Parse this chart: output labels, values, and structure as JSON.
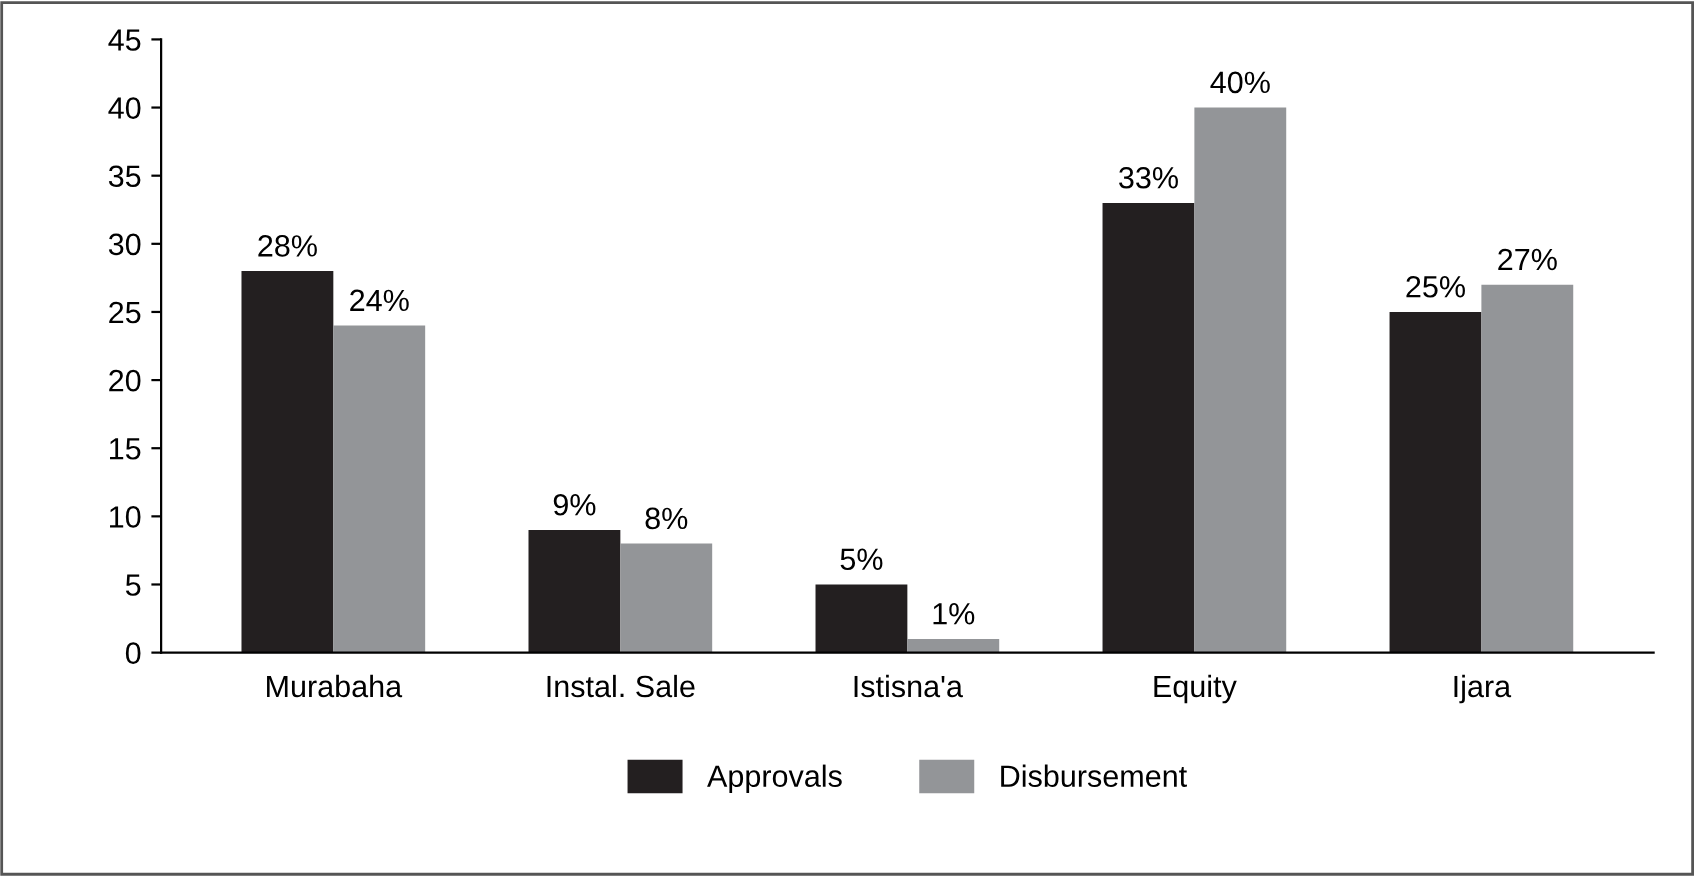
{
  "chart_data": {
    "type": "bar",
    "categories": [
      "Murabaha",
      "Instal. Sale",
      "Istisna'a",
      "Equity",
      "Ijara"
    ],
    "series": [
      {
        "name": "Approvals",
        "color": "#231f20",
        "values": [
          28,
          9,
          5,
          33,
          25
        ],
        "value_labels": [
          "28%",
          "9%",
          "5%",
          "33%",
          "25%"
        ]
      },
      {
        "name": "Disbursement",
        "color": "#939598",
        "values": [
          24,
          8,
          1,
          40,
          27
        ],
        "value_labels": [
          "24%",
          "8%",
          "1%",
          "40%",
          "27%"
        ]
      }
    ],
    "ylim": [
      0,
      45
    ],
    "yticks": [
      0,
      5,
      10,
      15,
      20,
      25,
      30,
      35,
      40,
      45
    ],
    "grid": false,
    "legend": "bottom"
  }
}
